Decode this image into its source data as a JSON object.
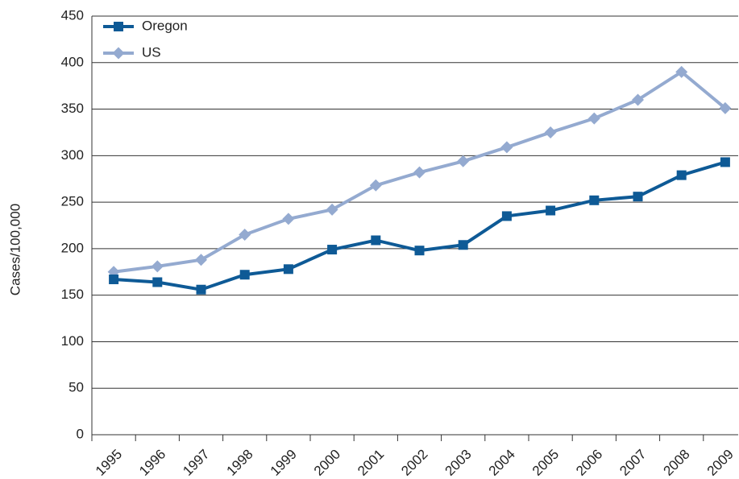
{
  "chart_data": {
    "type": "line",
    "y_label": "Cases/100,000",
    "categories": [
      "1995",
      "1996",
      "1997",
      "1998",
      "1999",
      "2000",
      "2001",
      "2002",
      "2003",
      "2004",
      "2005",
      "2006",
      "2007",
      "2008",
      "2009"
    ],
    "series": [
      {
        "name": "Oregon",
        "color": "#0e5a96",
        "marker": "square",
        "values": [
          167,
          164,
          156,
          172,
          178,
          199,
          209,
          198,
          204,
          235,
          241,
          252,
          256,
          279,
          293
        ]
      },
      {
        "name": "US",
        "color": "#94aad0",
        "marker": "diamond",
        "values": [
          175,
          181,
          188,
          215,
          232,
          242,
          268,
          282,
          294,
          309,
          325,
          340,
          360,
          390,
          351
        ]
      }
    ],
    "ylim": [
      0,
      450
    ],
    "yticks": [
      0,
      50,
      100,
      150,
      200,
      250,
      300,
      350,
      400,
      450
    ],
    "grid": true,
    "legend": "top-left"
  }
}
